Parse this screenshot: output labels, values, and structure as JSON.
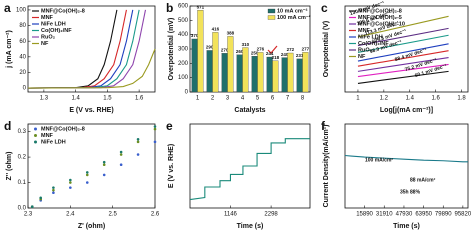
{
  "chart_data": [
    {
      "label": "a",
      "type": "line",
      "xlabel": "E (V vs. RHE)",
      "ylabel": "j (mA cm⁻²)",
      "xlim": [
        1.25,
        1.65
      ],
      "xticks": [
        1.3,
        1.4,
        1.5,
        1.6
      ],
      "ylim": [
        -5,
        105
      ],
      "yticks": [
        0,
        20,
        40,
        60,
        80,
        100
      ],
      "legend": "top-left",
      "series": [
        {
          "name": "MNF@Co(OH)₂-8",
          "color": "#111111",
          "x": [
            1.25,
            1.4,
            1.44,
            1.47,
            1.49,
            1.51,
            1.53
          ],
          "values": [
            0,
            0.5,
            3,
            12,
            30,
            60,
            100
          ]
        },
        {
          "name": "MNF",
          "color": "#d62728",
          "x": [
            1.25,
            1.42,
            1.46,
            1.49,
            1.52,
            1.54,
            1.56
          ],
          "values": [
            0,
            0.5,
            3,
            12,
            30,
            60,
            100
          ]
        },
        {
          "name": "NiFe LDH",
          "color": "#1f3fbf",
          "x": [
            1.25,
            1.44,
            1.48,
            1.51,
            1.54,
            1.56,
            1.58
          ],
          "values": [
            0,
            0.5,
            3,
            12,
            30,
            60,
            100
          ]
        },
        {
          "name": "Co(OH)₂/NF",
          "color": "#1a9a8a",
          "x": [
            1.25,
            1.46,
            1.5,
            1.53,
            1.56,
            1.58,
            1.6
          ],
          "values": [
            0,
            0.5,
            3,
            12,
            30,
            60,
            100
          ]
        },
        {
          "name": "RuO₂",
          "color": "#8e44ad",
          "x": [
            1.25,
            1.48,
            1.52,
            1.55,
            1.58,
            1.6,
            1.62
          ],
          "values": [
            0,
            0.5,
            3,
            12,
            30,
            60,
            100
          ]
        },
        {
          "name": "NF",
          "color": "#9a9a20",
          "x": [
            1.25,
            1.5,
            1.55,
            1.58,
            1.61,
            1.63,
            1.65
          ],
          "values": [
            0,
            0.5,
            2,
            6,
            15,
            30,
            50
          ]
        }
      ]
    },
    {
      "label": "b",
      "type": "bar",
      "xlabel": "Catalysts",
      "ylabel": "Overpotential (mV)",
      "categories": [
        "1",
        "2",
        "3",
        "4",
        "5",
        "6",
        "7",
        "8"
      ],
      "ylim": [
        0,
        600
      ],
      "yticks": [
        0,
        100,
        200,
        300,
        400,
        500,
        600
      ],
      "legend": "top-right",
      "series": [
        {
          "name": "10 mA cm⁻²",
          "color": "#1f6f6b",
          "values": [
            370,
            290,
            270,
            260,
            250,
            244,
            240,
            231
          ]
        },
        {
          "name": "100 mA cm⁻²",
          "color": "#f2e25a",
          "values": [
            571,
            416,
            388,
            310,
            276,
            218,
            272,
            277
          ]
        }
      ]
    },
    {
      "label": "c",
      "type": "line",
      "xlabel": "Log[j(mA cm⁻²)]",
      "ylabel": "Overpotential (V)",
      "xlim": [
        0.9,
        1.85
      ],
      "xticks": [
        1.0,
        1.2,
        1.4,
        1.6,
        1.8
      ],
      "ylim": [
        0.15,
        0.65
      ],
      "legend": "top-left",
      "series": [
        {
          "name": "MNF@Co(OH)₂-8",
          "color": "#111111",
          "x": [
            1.0,
            1.7
          ],
          "values": [
            0.2,
            0.27
          ]
        },
        {
          "name": "MNF@Co(OH)₂-5",
          "color": "#e020c0",
          "x": [
            1.0,
            1.7
          ],
          "values": [
            0.24,
            0.31
          ]
        },
        {
          "name": "MNF@Co(OH)₂-10",
          "color": "#7030a0",
          "x": [
            1.0,
            1.7
          ],
          "values": [
            0.27,
            0.35
          ]
        },
        {
          "name": "MNF",
          "color": "#d62728",
          "x": [
            1.0,
            1.7
          ],
          "values": [
            0.3,
            0.39
          ]
        },
        {
          "name": "NiFe LDH",
          "color": "#1f3fbf",
          "x": [
            1.0,
            1.7
          ],
          "values": [
            0.33,
            0.43
          ]
        },
        {
          "name": "Co(OH)₂/NF",
          "color": "#1a9a8a",
          "x": [
            1.0,
            1.7
          ],
          "values": [
            0.38,
            0.48
          ]
        },
        {
          "name": "RuO₂",
          "color": "#5b2c83",
          "x": [
            1.0,
            1.7
          ],
          "values": [
            0.42,
            0.52
          ]
        },
        {
          "name": "NF",
          "color": "#9a9a20",
          "x": [
            1.0,
            1.7
          ],
          "values": [
            0.47,
            0.59
          ]
        }
      ],
      "annotations": [
        "60.1 mV dec⁻¹",
        "75.2 mV dec⁻¹",
        "88.4 mV dec⁻¹",
        "98.9 mV dec⁻¹",
        "109.3 mV dec⁻¹",
        "113.3 mV dec⁻¹",
        "120.6 mV dec⁻¹",
        "130.5 mV dec⁻¹"
      ]
    },
    {
      "label": "d",
      "type": "scatter",
      "xlabel": "Z' (ohm)",
      "ylabel": "Z'' (ohm)",
      "xlim": [
        2.3,
        2.6
      ],
      "xticks": [
        2.3,
        2.4,
        2.5,
        2.6
      ],
      "ylim": [
        0,
        0.33
      ],
      "yticks": [
        {
          "value": 0,
          "label": "0.0"
        },
        0.1,
        0.2,
        0.3
      ],
      "legend": "top-left",
      "series": [
        {
          "name": "MNF@Co(OH)₂-8",
          "color": "#3a5fcd",
          "x": [
            2.31,
            2.33,
            2.36,
            2.4,
            2.44,
            2.48,
            2.52,
            2.56,
            2.6
          ],
          "values": [
            0.005,
            0.03,
            0.06,
            0.08,
            0.1,
            0.13,
            0.17,
            0.21,
            0.26
          ]
        },
        {
          "name": "MNF",
          "color": "#6b8e23",
          "x": [
            2.31,
            2.33,
            2.36,
            2.4,
            2.44,
            2.48,
            2.52,
            2.56,
            2.6
          ],
          "values": [
            0.005,
            0.035,
            0.07,
            0.1,
            0.13,
            0.17,
            0.21,
            0.26,
            0.31
          ]
        },
        {
          "name": "NiFe LDH",
          "color": "#1a7a6a",
          "x": [
            2.31,
            2.33,
            2.36,
            2.4,
            2.44,
            2.48,
            2.52,
            2.56,
            2.6
          ],
          "values": [
            0.005,
            0.04,
            0.08,
            0.11,
            0.14,
            0.18,
            0.22,
            0.27,
            0.32
          ]
        }
      ]
    },
    {
      "label": "e",
      "type": "line",
      "xlabel": "Time (s)",
      "ylabel": "E (V vs. RHE)",
      "xlim": [
        0,
        3400
      ],
      "xticks": [
        1146,
        2298
      ],
      "ylim": [
        1.4,
        1.8
      ],
      "series": [
        {
          "color": "#1a8a7a",
          "x": [
            0,
            420,
            420,
            850,
            850,
            1146,
            1146,
            1500,
            1500,
            1900,
            1900,
            2298,
            2298,
            2700,
            2700,
            3400
          ],
          "values": [
            1.44,
            1.45,
            1.5,
            1.5,
            1.53,
            1.53,
            1.56,
            1.56,
            1.6,
            1.6,
            1.66,
            1.66,
            1.71,
            1.71,
            1.73,
            1.73
          ]
        }
      ]
    },
    {
      "label": "f",
      "type": "line",
      "xlabel": "Time (s)",
      "ylabel": "Current Density(mA/cm²)",
      "xlim": [
        0,
        100000
      ],
      "xticks": [
        15890,
        31910,
        47930,
        63950,
        79890,
        95820
      ],
      "ylim": [
        0,
        160
      ],
      "series": [
        {
          "color": "#1a7a8a",
          "x": [
            0,
            5000,
            15890,
            31910,
            47930,
            63950,
            79890,
            95820,
            100000
          ],
          "values": [
            100,
            99,
            97,
            95,
            93,
            91,
            90,
            88,
            88
          ]
        }
      ],
      "annotations": [
        "100 mA/cm²",
        "88 mA/cm²",
        "35h  88%"
      ]
    }
  ]
}
